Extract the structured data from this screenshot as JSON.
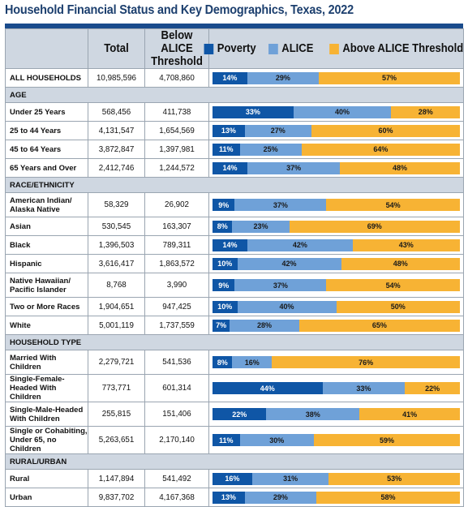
{
  "title": "Household Financial Status and Key Demographics, Texas, 2022",
  "columns": {
    "label": "",
    "total": "Total",
    "below": "Below ALICE Threshold"
  },
  "colors": {
    "poverty": "#0f56a6",
    "alice": "#6fa1d8",
    "above": "#f7b334"
  },
  "chart_data": {
    "type": "bar",
    "stacked": true,
    "orientation": "horizontal",
    "title": "Household Financial Status and Key Demographics, Texas, 2022",
    "legend_position": "top",
    "series_names": [
      "Poverty",
      "ALICE",
      "Above ALICE Threshold"
    ],
    "rows": [
      {
        "kind": "data",
        "label": "ALL HOUSEHOLDS",
        "total": "10,985,596",
        "below": "4,708,860",
        "values": [
          14,
          29,
          57
        ]
      },
      {
        "kind": "section",
        "label": "AGE"
      },
      {
        "kind": "data",
        "label": "Under 25 Years",
        "total": "568,456",
        "below": "411,738",
        "values": [
          33,
          40,
          28
        ]
      },
      {
        "kind": "data",
        "label": "25 to 44 Years",
        "total": "4,131,547",
        "below": "1,654,569",
        "values": [
          13,
          27,
          60
        ]
      },
      {
        "kind": "data",
        "label": "45 to 64 Years",
        "total": "3,872,847",
        "below": "1,397,981",
        "values": [
          11,
          25,
          64
        ]
      },
      {
        "kind": "data",
        "label": "65 Years and Over",
        "total": "2,412,746",
        "below": "1,244,572",
        "values": [
          14,
          37,
          48
        ]
      },
      {
        "kind": "section",
        "label": "RACE/ETHNICITY"
      },
      {
        "kind": "data",
        "label": "American Indian/ Alaska Native",
        "total": "58,329",
        "below": "26,902",
        "values": [
          9,
          37,
          54
        ],
        "tall": true
      },
      {
        "kind": "data",
        "label": "Asian",
        "total": "530,545",
        "below": "163,307",
        "values": [
          8,
          23,
          69
        ]
      },
      {
        "kind": "data",
        "label": "Black",
        "total": "1,396,503",
        "below": "789,311",
        "values": [
          14,
          42,
          43
        ]
      },
      {
        "kind": "data",
        "label": "Hispanic",
        "total": "3,616,417",
        "below": "1,863,572",
        "values": [
          10,
          42,
          48
        ]
      },
      {
        "kind": "data",
        "label": "Native Hawaiian/ Pacific Islander",
        "total": "8,768",
        "below": "3,990",
        "values": [
          9,
          37,
          54
        ],
        "tall": true
      },
      {
        "kind": "data",
        "label": "Two or More Races",
        "total": "1,904,651",
        "below": "947,425",
        "values": [
          10,
          40,
          50
        ]
      },
      {
        "kind": "data",
        "label": "White",
        "total": "5,001,119",
        "below": "1,737,559",
        "values": [
          7,
          28,
          65
        ]
      },
      {
        "kind": "section",
        "label": "HOUSEHOLD TYPE"
      },
      {
        "kind": "data",
        "label": "Married With Children",
        "total": "2,279,721",
        "below": "541,536",
        "values": [
          8,
          16,
          76
        ],
        "tall": true
      },
      {
        "kind": "data",
        "label": "Single-Female-Headed With Children",
        "total": "773,771",
        "below": "601,314",
        "values": [
          44,
          33,
          22
        ],
        "tall": true
      },
      {
        "kind": "data",
        "label": "Single-Male-Headed With Children",
        "total": "255,815",
        "below": "151,406",
        "values": [
          22,
          38,
          41
        ],
        "tall": true
      },
      {
        "kind": "data",
        "label": "Single or Cohabiting, Under 65, no Children",
        "total": "5,263,651",
        "below": "2,170,140",
        "values": [
          11,
          30,
          59
        ],
        "tall": true
      },
      {
        "kind": "section",
        "label": "RURAL/URBAN"
      },
      {
        "kind": "data",
        "label": "Rural",
        "total": "1,147,894",
        "below": "541,492",
        "values": [
          16,
          31,
          53
        ]
      },
      {
        "kind": "data",
        "label": "Urban",
        "total": "9,837,702",
        "below": "4,167,368",
        "values": [
          13,
          29,
          58
        ]
      }
    ]
  }
}
